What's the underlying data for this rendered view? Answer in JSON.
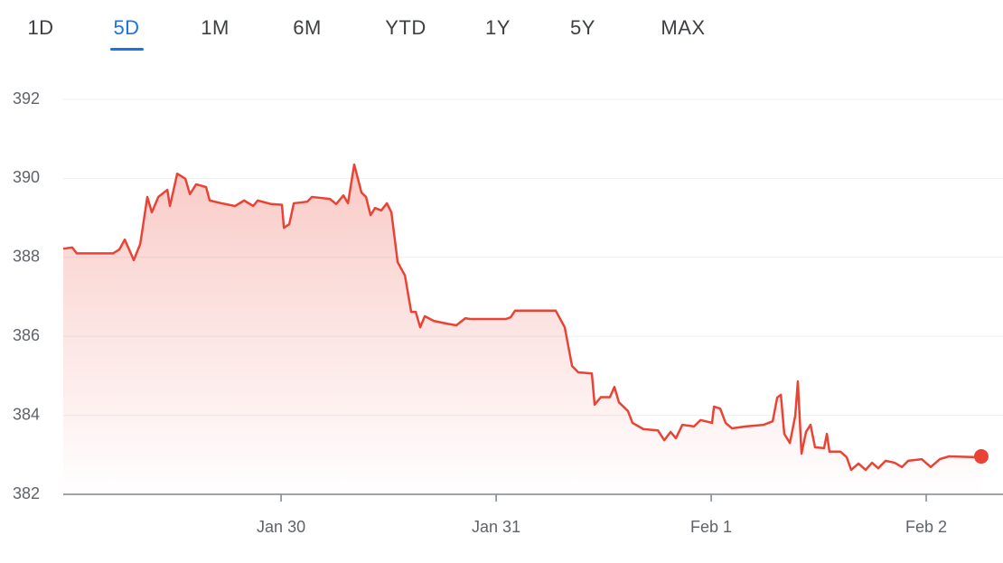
{
  "range_tabs": [
    "1D",
    "5D",
    "1M",
    "6M",
    "YTD",
    "1Y",
    "5Y",
    "MAX"
  ],
  "selected_tab": 1,
  "chart_data": {
    "type": "line",
    "x": [
      -0.013,
      0.029,
      0.05,
      0.218,
      0.248,
      0.273,
      0.315,
      0.345,
      0.378,
      0.399,
      0.429,
      0.471,
      0.483,
      0.517,
      0.555,
      0.576,
      0.605,
      0.651,
      0.668,
      0.723,
      0.786,
      0.828,
      0.87,
      0.891,
      0.954,
      1.004,
      1.013,
      1.038,
      1.059,
      1.122,
      1.143,
      1.227,
      1.256,
      1.29,
      1.311,
      1.34,
      1.374,
      1.395,
      1.416,
      1.437,
      1.466,
      1.492,
      1.513,
      1.542,
      1.576,
      1.605,
      1.626,
      1.647,
      1.668,
      1.71,
      1.773,
      1.815,
      1.857,
      1.878,
      2.046,
      2.067,
      2.088,
      2.277,
      2.319,
      2.353,
      2.382,
      2.445,
      2.458,
      2.487,
      2.529,
      2.55,
      2.571,
      2.613,
      2.634,
      2.685,
      2.752,
      2.782,
      2.811,
      2.836,
      2.866,
      2.92,
      2.95,
      3.004,
      3.013,
      3.042,
      3.067,
      3.097,
      3.16,
      3.244,
      3.286,
      3.307,
      3.324,
      3.34,
      3.366,
      3.391,
      3.403,
      3.42,
      3.441,
      3.462,
      3.483,
      3.525,
      3.538,
      3.55,
      3.601,
      3.63,
      3.651,
      3.685,
      3.718,
      3.748,
      3.777,
      3.811,
      3.853,
      3.887,
      3.916,
      3.979,
      4.021,
      4.063,
      4.105,
      4.231,
      4.256
    ],
    "series": [
      {
        "color": "#ea4335",
        "values": [
          388.22,
          388.25,
          388.1,
          388.1,
          388.2,
          388.45,
          387.93,
          388.34,
          389.53,
          389.14,
          389.53,
          389.71,
          389.3,
          390.12,
          389.99,
          389.6,
          389.85,
          389.78,
          389.44,
          389.37,
          389.3,
          389.44,
          389.3,
          389.44,
          389.35,
          389.33,
          388.75,
          388.84,
          389.37,
          389.41,
          389.53,
          389.48,
          389.35,
          389.57,
          389.37,
          390.35,
          389.64,
          389.53,
          389.07,
          389.25,
          389.19,
          389.37,
          389.14,
          387.88,
          387.54,
          386.62,
          386.62,
          386.23,
          386.51,
          386.39,
          386.32,
          386.28,
          386.46,
          386.44,
          386.44,
          386.48,
          386.65,
          386.65,
          386.23,
          385.25,
          385.09,
          385.06,
          384.27,
          384.46,
          384.46,
          384.72,
          384.33,
          384.11,
          383.81,
          383.65,
          383.62,
          383.37,
          383.58,
          383.42,
          383.76,
          383.72,
          383.88,
          383.81,
          384.22,
          384.17,
          383.81,
          383.67,
          383.72,
          383.76,
          383.85,
          384.45,
          384.52,
          383.53,
          383.3,
          383.99,
          384.86,
          383.03,
          383.58,
          383.76,
          383.19,
          383.17,
          383.53,
          383.08,
          383.08,
          382.94,
          382.62,
          382.78,
          382.62,
          382.8,
          382.66,
          382.85,
          382.8,
          382.69,
          382.85,
          382.89,
          382.69,
          382.89,
          382.96,
          382.94,
          382.96
        ]
      }
    ],
    "xlim": [
      -0.013,
      4.357
    ],
    "xticks": [
      {
        "value": 1,
        "label": "Jan 30"
      },
      {
        "value": 2,
        "label": "Jan 31"
      },
      {
        "value": 3,
        "label": "Feb 1"
      },
      {
        "value": 4,
        "label": "Feb 2"
      }
    ],
    "ylim": [
      382,
      392
    ],
    "yticks": [
      382,
      384,
      386,
      388,
      390,
      392
    ],
    "grid": true,
    "last_point_marker": true
  }
}
